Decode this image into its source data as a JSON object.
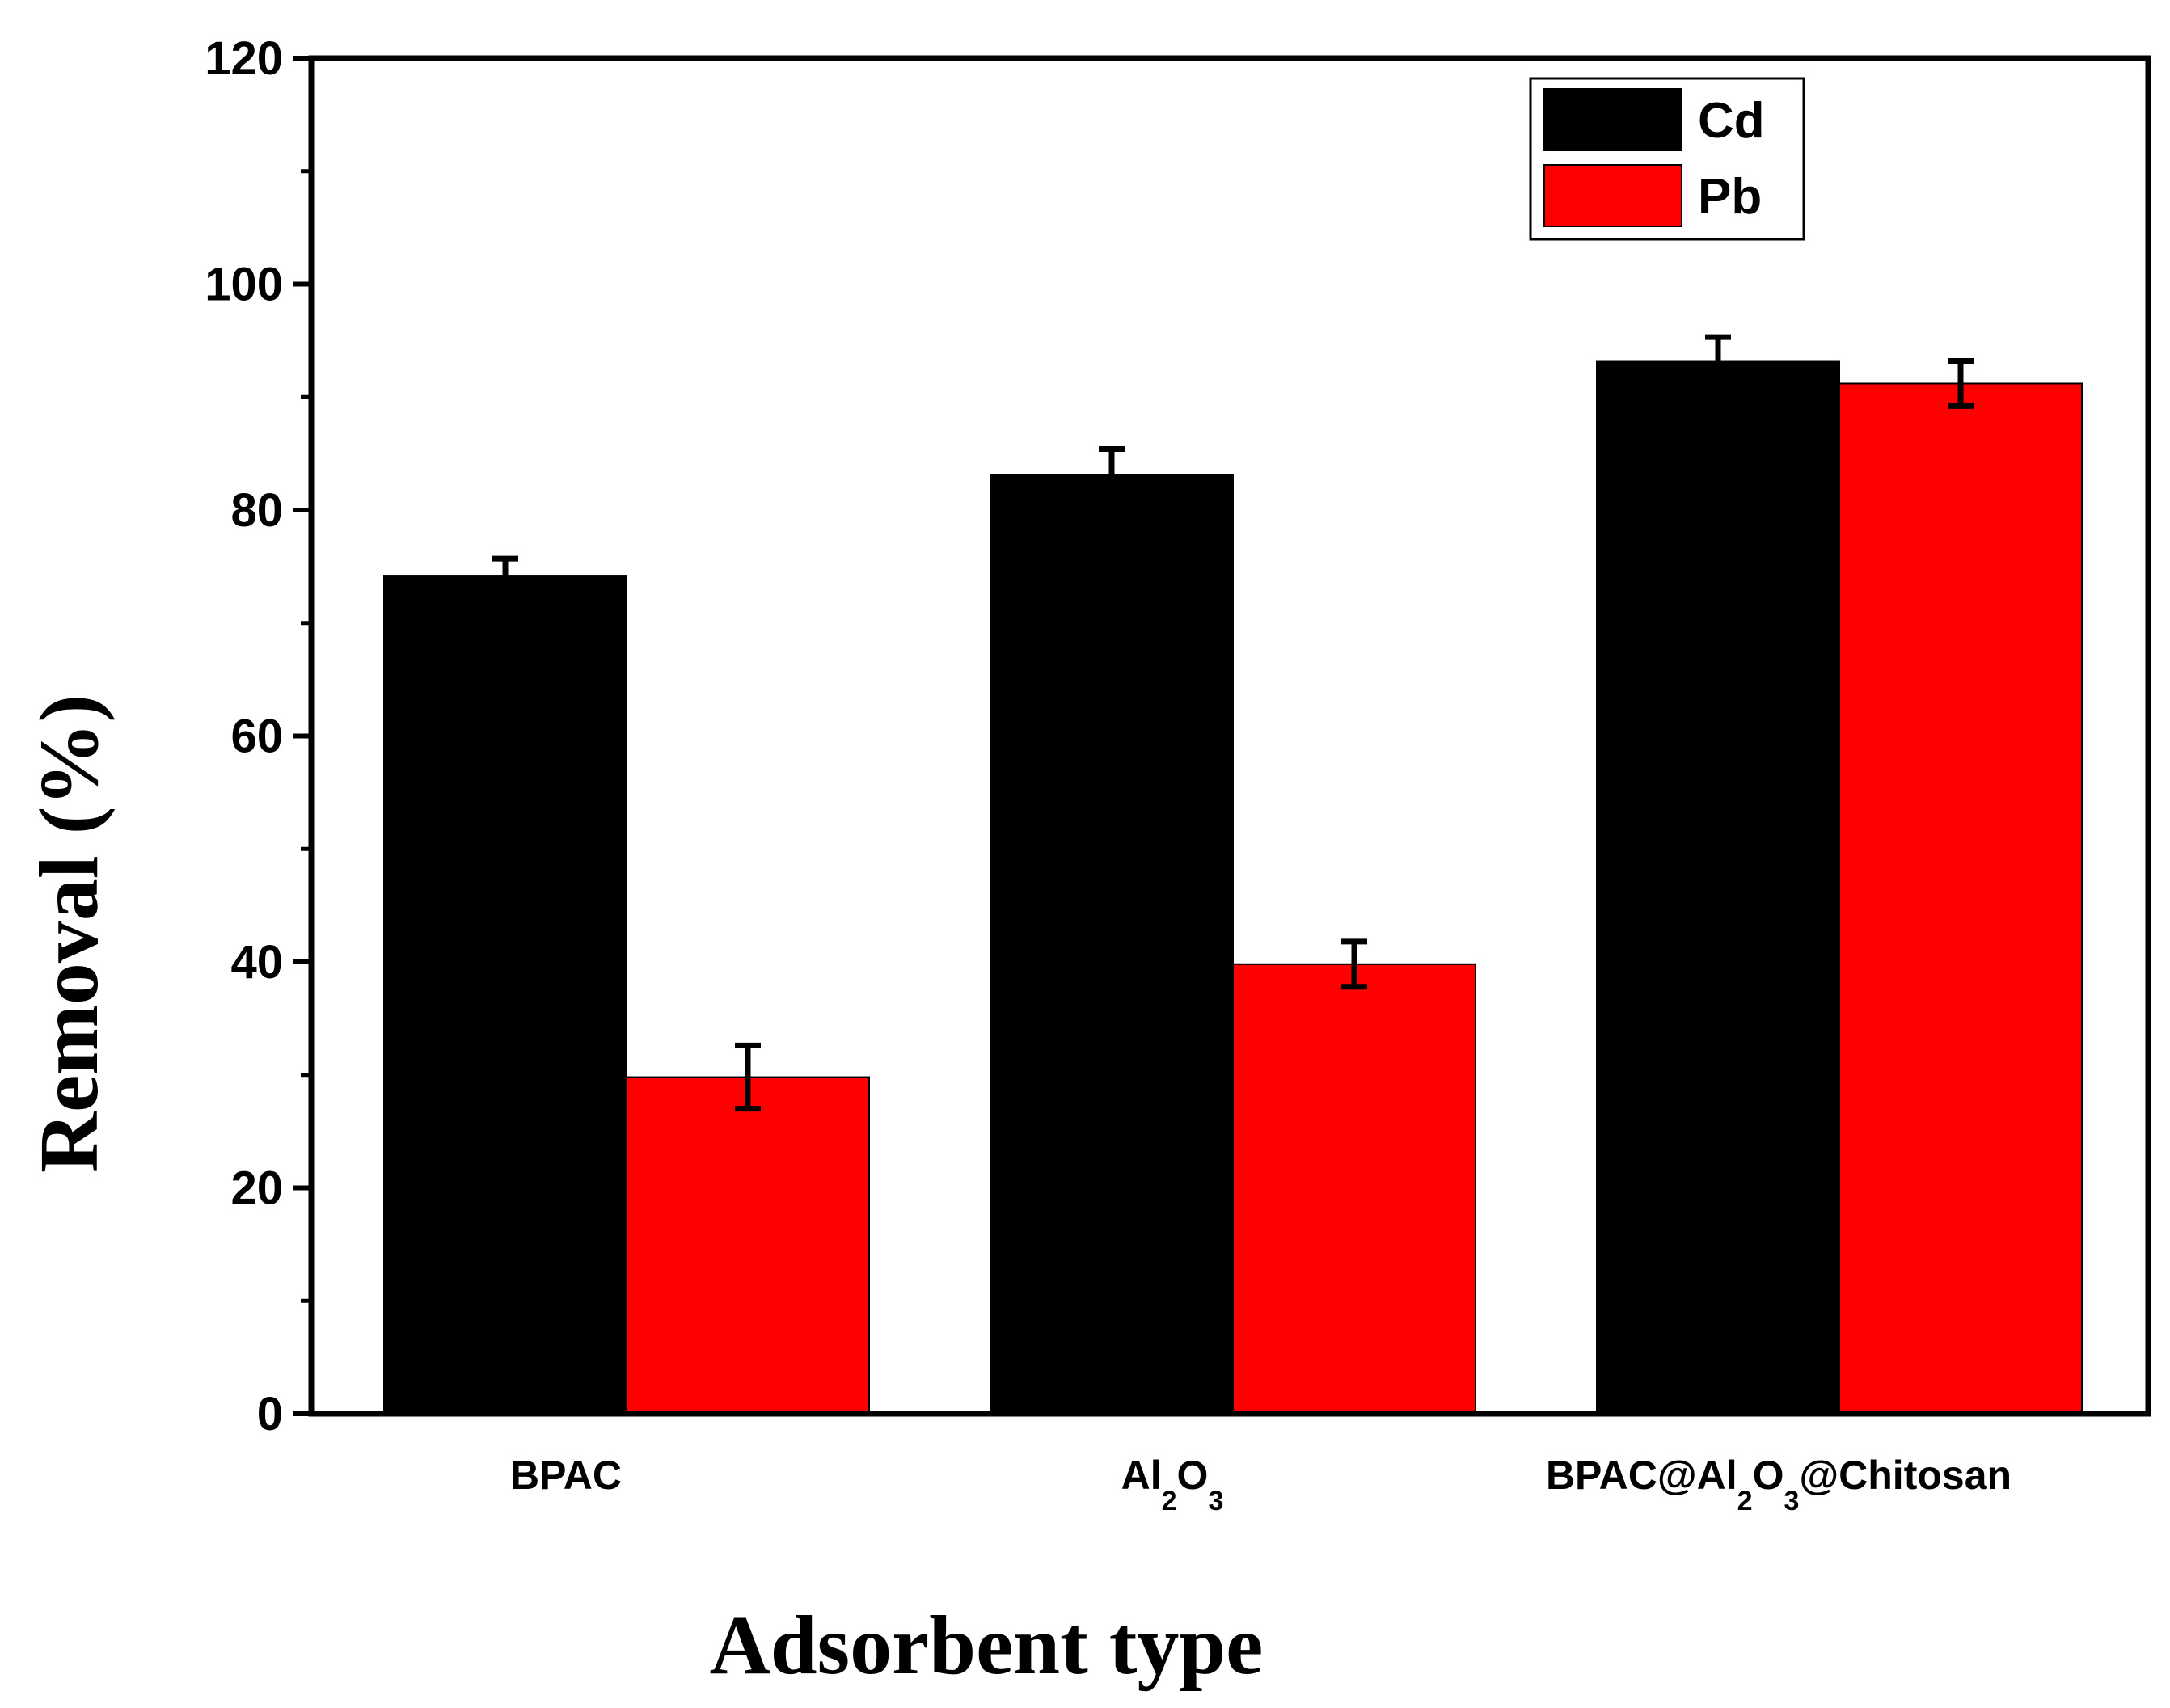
{
  "chart_data": {
    "type": "bar",
    "xlabel": "Adsorbent type",
    "ylabel": "Removal (%)",
    "ylim": [
      0,
      120
    ],
    "yticks": [
      "0",
      "20",
      "40",
      "60",
      "80",
      "100",
      "120"
    ],
    "ytick_values": [
      0,
      20,
      40,
      60,
      80,
      100,
      120
    ],
    "categories": [
      {
        "label": "BPAC",
        "parts": [
          {
            "t": "BPAC",
            "sub": false
          }
        ]
      },
      {
        "label": "Al2O3",
        "parts": [
          {
            "t": "Al",
            "sub": false
          },
          {
            "t": "2",
            "sub": true
          },
          {
            "t": "O",
            "sub": false
          },
          {
            "t": "3",
            "sub": true
          }
        ]
      },
      {
        "label": "BPAC@Al2O3@Chitosan",
        "parts": [
          {
            "t": "BPAC@Al",
            "sub": false
          },
          {
            "t": "2",
            "sub": true
          },
          {
            "t": "O",
            "sub": false
          },
          {
            "t": "3",
            "sub": true
          },
          {
            "t": "@Chitosan",
            "sub": false
          }
        ]
      }
    ],
    "series": [
      {
        "name": "Cd",
        "color": "#000000",
        "values": [
          74.2,
          83.1,
          93.2
        ],
        "errors": [
          1.5,
          2.3,
          2.1
        ]
      },
      {
        "name": "Pb",
        "color": "#ff0000",
        "values": [
          29.8,
          39.8,
          91.2
        ],
        "errors": [
          2.8,
          2.0,
          2.0
        ]
      }
    ],
    "legend_position": "top-right",
    "grid": false
  }
}
